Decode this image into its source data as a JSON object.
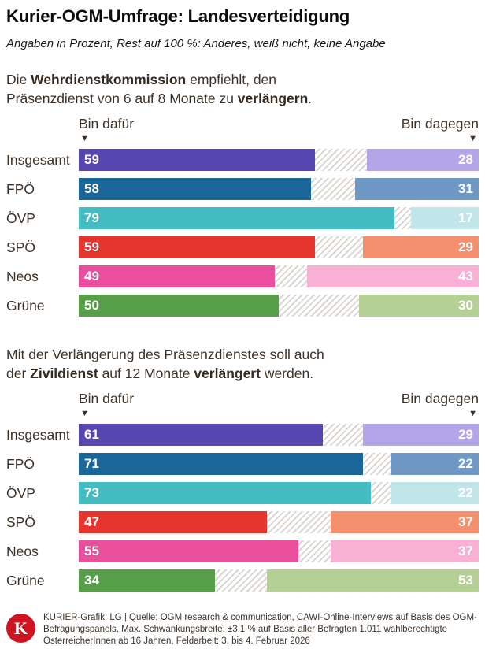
{
  "page": {
    "title": "Kurier-OGM-Umfrage: Landesverteidigung",
    "subtitle": "Angaben in Prozent, Rest auf 100 %: Anderes, weiß nicht, keine Angabe"
  },
  "axis_header": {
    "left": "Bin dafür",
    "right": "Bin dagegen",
    "marker": "▼"
  },
  "charts": [
    {
      "question_lines": [
        [
          {
            "text": "Die ",
            "bold": false
          },
          {
            "text": "Wehrdienstkommission",
            "bold": true
          },
          {
            "text": " empfiehlt, den",
            "bold": false
          }
        ],
        [
          {
            "text": "Präsenzdienst von 6 auf 8 Monate zu ",
            "bold": false
          },
          {
            "text": "verlängern",
            "bold": true
          },
          {
            "text": ".",
            "bold": false
          }
        ]
      ],
      "rows": [
        {
          "label": "Insgesamt",
          "dafuer": 59,
          "dagegen": 28,
          "color_dark": "#5547af",
          "color_light": "#b3a5e7"
        },
        {
          "label": "FPÖ",
          "dafuer": 58,
          "dagegen": 31,
          "color_dark": "#1b6698",
          "color_light": "#6f99c4"
        },
        {
          "label": "ÖVP",
          "dafuer": 79,
          "dagegen": 17,
          "color_dark": "#43bdc2",
          "color_light": "#c0e6e9"
        },
        {
          "label": "SPÖ",
          "dafuer": 59,
          "dagegen": 29,
          "color_dark": "#e6352c",
          "color_light": "#f4906e"
        },
        {
          "label": "Neos",
          "dafuer": 49,
          "dagegen": 43,
          "color_dark": "#ea4f9e",
          "color_light": "#f8b0d4"
        },
        {
          "label": "Grüne",
          "dafuer": 50,
          "dagegen": 30,
          "color_dark": "#57a049",
          "color_light": "#b5d095"
        }
      ]
    },
    {
      "question_lines": [
        [
          {
            "text": "Mit der Verlängerung des Präsenzdienstes soll auch",
            "bold": false
          }
        ],
        [
          {
            "text": "der ",
            "bold": false
          },
          {
            "text": "Zivildienst",
            "bold": true
          },
          {
            "text": " auf 12 Monate ",
            "bold": false
          },
          {
            "text": "verlängert",
            "bold": true
          },
          {
            "text": " werden.",
            "bold": false
          }
        ]
      ],
      "rows": [
        {
          "label": "Insgesamt",
          "dafuer": 61,
          "dagegen": 29,
          "color_dark": "#5547af",
          "color_light": "#b3a5e7"
        },
        {
          "label": "FPÖ",
          "dafuer": 71,
          "dagegen": 22,
          "color_dark": "#1b6698",
          "color_light": "#6f99c4"
        },
        {
          "label": "ÖVP",
          "dafuer": 73,
          "dagegen": 22,
          "color_dark": "#43bdc2",
          "color_light": "#c0e6e9"
        },
        {
          "label": "SPÖ",
          "dafuer": 47,
          "dagegen": 37,
          "color_dark": "#e6352c",
          "color_light": "#f4906e"
        },
        {
          "label": "Neos",
          "dafuer": 55,
          "dagegen": 37,
          "color_dark": "#ea4f9e",
          "color_light": "#f8b0d4"
        },
        {
          "label": "Grüne",
          "dafuer": 34,
          "dagegen": 53,
          "color_dark": "#57a049",
          "color_light": "#b5d095"
        }
      ]
    }
  ],
  "footer": {
    "logo_letter": "K",
    "logo_color": "#cd1420",
    "text": "KURIER-Grafik: LG | Quelle: OGM research & communication, CAWI-Online-Interviews auf Basis des OGM-Befragungspanels, Max. Schwankungsbreite: ±3,1 % auf Basis aller Befragten 1.011 wahlberechtigte ÖsterreicherInnen ab 16 Jahren, Feldarbeit: 3. bis 4. Februar 2026"
  },
  "chart_data": [
    {
      "type": "bar",
      "orientation": "horizontal-stacked",
      "title": "Die Wehrdienstkommission empfiehlt, den Präsenzdienst von 6 auf 8 Monate zu verlängern.",
      "categories": [
        "Insgesamt",
        "FPÖ",
        "ÖVP",
        "SPÖ",
        "Neos",
        "Grüne"
      ],
      "series": [
        {
          "name": "Bin dafür",
          "values": [
            59,
            58,
            79,
            59,
            49,
            50
          ]
        },
        {
          "name": "Bin dagegen",
          "values": [
            28,
            31,
            17,
            29,
            43,
            30
          ]
        }
      ],
      "unit": "percent",
      "xlim": [
        0,
        100
      ],
      "note": "Rest auf 100 %: Anderes, weiß nicht, keine Angabe (hatched gap)",
      "legend_position": "above-bars",
      "grid": false
    },
    {
      "type": "bar",
      "orientation": "horizontal-stacked",
      "title": "Mit der Verlängerung des Präsenzdienstes soll auch der Zivildienst auf 12 Monate verlängert werden.",
      "categories": [
        "Insgesamt",
        "FPÖ",
        "ÖVP",
        "SPÖ",
        "Neos",
        "Grüne"
      ],
      "series": [
        {
          "name": "Bin dafür",
          "values": [
            61,
            71,
            73,
            47,
            55,
            34
          ]
        },
        {
          "name": "Bin dagegen",
          "values": [
            29,
            22,
            22,
            37,
            37,
            53
          ]
        }
      ],
      "unit": "percent",
      "xlim": [
        0,
        100
      ],
      "note": "Rest auf 100 %: Anderes, weiß nicht, keine Angabe (hatched gap)",
      "legend_position": "above-bars",
      "grid": false
    }
  ]
}
